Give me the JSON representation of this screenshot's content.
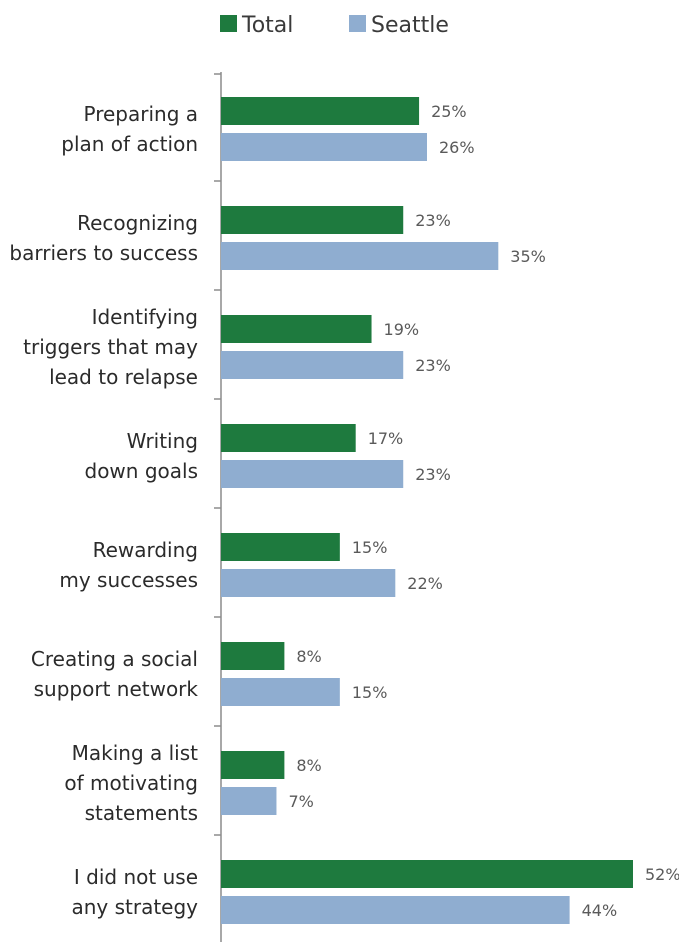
{
  "chart_data": {
    "type": "bar",
    "orientation": "horizontal",
    "categories": [
      [
        "Preparing a",
        "plan of action"
      ],
      [
        "Recognizing",
        "barriers to success"
      ],
      [
        "Identifying",
        "triggers that may",
        "lead to relapse"
      ],
      [
        "Writing",
        "down goals"
      ],
      [
        "Rewarding",
        "my successes"
      ],
      [
        "Creating a social",
        "support network"
      ],
      [
        "Making a list",
        "of motivating",
        "statements"
      ],
      [
        "I did not use",
        "any strategy"
      ]
    ],
    "series": [
      {
        "name": "Total",
        "color": "#1e7a3e",
        "values": [
          25,
          23,
          19,
          17,
          15,
          8,
          8,
          52
        ]
      },
      {
        "name": "Seattle",
        "color": "#8fadd0",
        "values": [
          26,
          35,
          23,
          23,
          22,
          15,
          7,
          44
        ]
      }
    ],
    "value_suffix": "%",
    "xlim": [
      0,
      52
    ],
    "legend_position": "top",
    "grid": false
  }
}
